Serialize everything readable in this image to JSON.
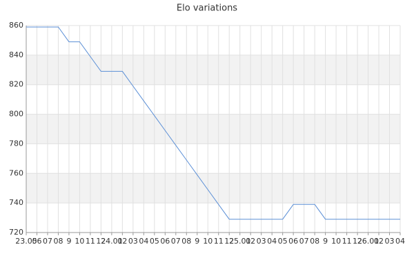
{
  "chart_data": {
    "type": "line",
    "title": "Elo variations",
    "categories": [
      "23.05",
      "06",
      "07",
      "08",
      "9",
      "10",
      "11",
      "12",
      "24.01",
      "02",
      "03",
      "04",
      "05",
      "06",
      "07",
      "08",
      "9",
      "10",
      "11",
      "12",
      "25.01",
      "02",
      "03",
      "04",
      "05",
      "06",
      "07",
      "08",
      "9",
      "10",
      "11",
      "12",
      "26.01",
      "02",
      "03",
      "04"
    ],
    "series": [
      {
        "color": "#5b8fd6",
        "values": [
          859,
          859,
          859,
          859,
          849,
          849,
          839,
          829,
          829,
          829,
          819,
          809,
          799,
          789,
          779,
          769,
          759,
          749,
          739,
          729,
          729,
          729,
          729,
          729,
          729,
          739,
          739,
          739,
          729,
          729,
          729,
          729,
          729,
          729,
          729,
          729
        ]
      }
    ],
    "ylim": [
      720,
      860
    ],
    "yticks": [
      720,
      740,
      760,
      780,
      800,
      820,
      840,
      860
    ],
    "grid": true,
    "alternate_bands": true
  }
}
